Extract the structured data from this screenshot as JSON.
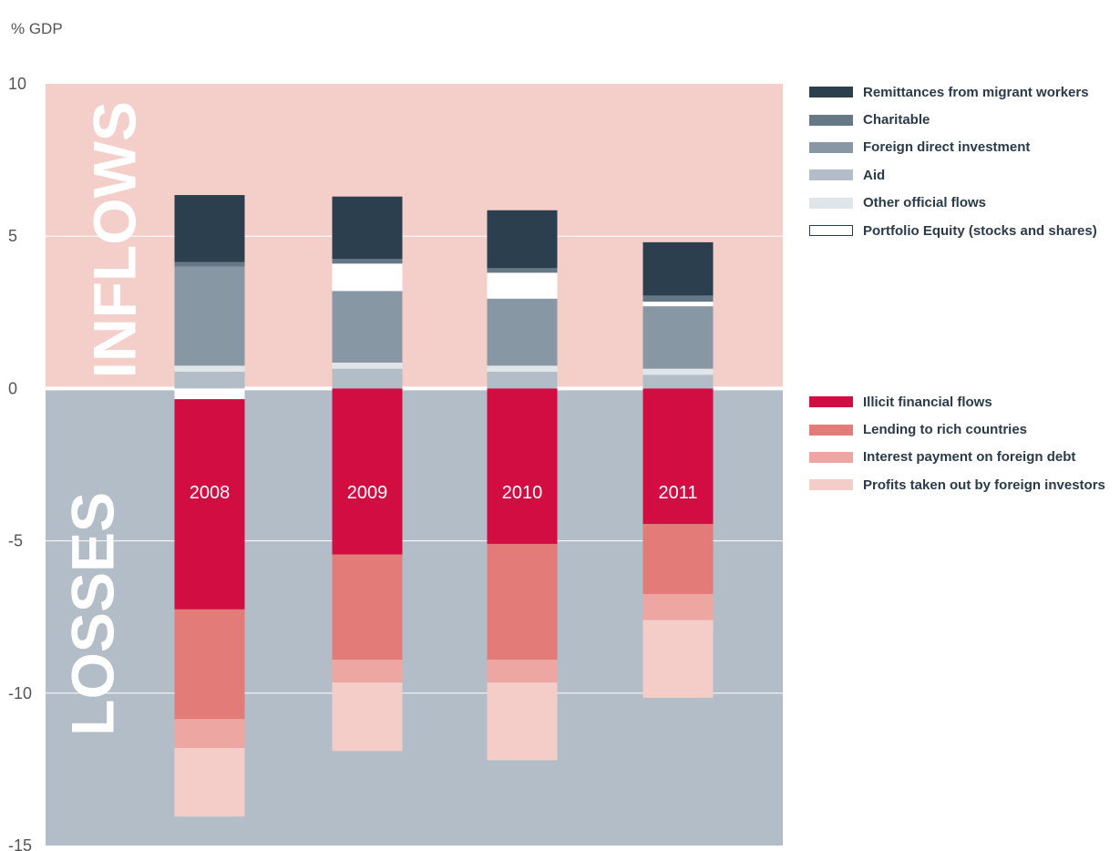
{
  "chart_data": {
    "type": "bar",
    "stacked": true,
    "ylabel": "% GDP",
    "ylim": [
      -15,
      10
    ],
    "yticks": [
      10,
      5,
      0,
      -5,
      -10,
      -15
    ],
    "grid": true,
    "legend_position": "right",
    "regions": [
      {
        "label": "INFLOWS",
        "range": [
          0,
          10
        ],
        "color": "#f4cfca"
      },
      {
        "label": "LOSSES",
        "range": [
          -15,
          0
        ],
        "color": "#b2bdc7"
      }
    ],
    "categories": [
      "2008",
      "2009",
      "2010",
      "2011"
    ],
    "inflow_series": [
      {
        "name": "Aid",
        "color": "#b2bdc7",
        "values": [
          0.55,
          0.65,
          0.55,
          0.45
        ]
      },
      {
        "name": "Other official flows",
        "color": "#e0e5ea",
        "values": [
          0.2,
          0.2,
          0.2,
          0.2
        ]
      },
      {
        "name": "Foreign direct investment",
        "color": "#8798a4",
        "values": [
          3.25,
          2.35,
          2.2,
          2.05
        ]
      },
      {
        "name": "Portfolio Equity (stocks and shares)",
        "color": "#ffffff",
        "outline": true,
        "values": [
          -0.35,
          0.9,
          0.85,
          0.15
        ]
      },
      {
        "name": "Charitable",
        "color": "#657885",
        "values": [
          0.15,
          0.15,
          0.15,
          0.2
        ]
      },
      {
        "name": "Remittances from migrant workers",
        "color": "#2b3f4e",
        "values": [
          2.2,
          2.05,
          1.9,
          1.75
        ]
      }
    ],
    "loss_series": [
      {
        "name": "Illicit financial flows",
        "color": "#d10d42",
        "values": [
          -6.9,
          -5.45,
          -5.1,
          -4.45
        ]
      },
      {
        "name": "Lending to rich countries",
        "color": "#e37b79",
        "values": [
          -3.6,
          -3.45,
          -3.8,
          -2.3
        ]
      },
      {
        "name": "Interest payment on foreign debt",
        "color": "#eea6a3",
        "values": [
          -0.95,
          -0.75,
          -0.75,
          -0.85
        ]
      },
      {
        "name": "Profits taken out by foreign investors",
        "color": "#f5cdc8",
        "values": [
          -2.25,
          -2.25,
          -2.55,
          -2.55
        ]
      }
    ]
  },
  "legend": {
    "inflows": [
      {
        "label": "Remittances from migrant workers",
        "color": "#2b3f4e"
      },
      {
        "label": "Charitable",
        "color": "#657885"
      },
      {
        "label": "Foreign direct investment",
        "color": "#8798a4"
      },
      {
        "label": "Aid",
        "color": "#b2bdc7"
      },
      {
        "label": "Other official flows",
        "color": "#e0e5ea"
      },
      {
        "label": "Portfolio Equity (stocks and shares)",
        "color": "#ffffff",
        "outline": true
      }
    ],
    "losses": [
      {
        "label": "Illicit financial flows",
        "color": "#d10d42"
      },
      {
        "label": "Lending to rich countries",
        "color": "#e37b79"
      },
      {
        "label": "Interest payment on foreign debt",
        "color": "#eea6a3"
      },
      {
        "label": "Profits taken out by foreign investors",
        "color": "#f5cdc8"
      }
    ]
  }
}
